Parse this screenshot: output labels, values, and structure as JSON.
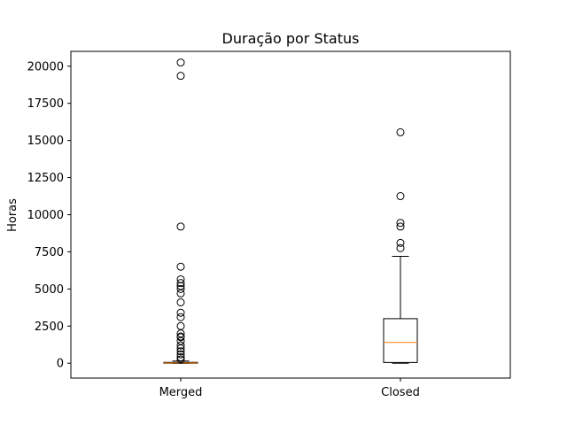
{
  "chart_data": {
    "type": "boxplot",
    "title": "Duração por Status",
    "xlabel": "",
    "ylabel": "Horas",
    "ylim": [
      -1000,
      21000
    ],
    "yticks": [
      0,
      2500,
      5000,
      7500,
      10000,
      12500,
      15000,
      17500,
      20000
    ],
    "grid": false,
    "categories": [
      "Merged",
      "Closed"
    ],
    "series": [
      {
        "category": "Merged",
        "whisker_low": 0,
        "q1": 5,
        "median": 20,
        "q3": 60,
        "whisker_high": 150,
        "outliers": [
          20250,
          19350,
          9200,
          6500,
          5650,
          5400,
          5200,
          5000,
          4700,
          4100,
          3400,
          3100,
          2500,
          2000,
          1800,
          1750,
          1500,
          1200,
          1000,
          800,
          600,
          400,
          250
        ]
      },
      {
        "category": "Closed",
        "whisker_low": 0,
        "q1": 50,
        "median": 1400,
        "q3": 3000,
        "whisker_high": 7200,
        "outliers": [
          15550,
          11250,
          9450,
          9200,
          8100,
          7750
        ]
      }
    ],
    "colors": {
      "box": "#000000",
      "median": "#ff7f0e",
      "outlier": "#000000"
    }
  }
}
